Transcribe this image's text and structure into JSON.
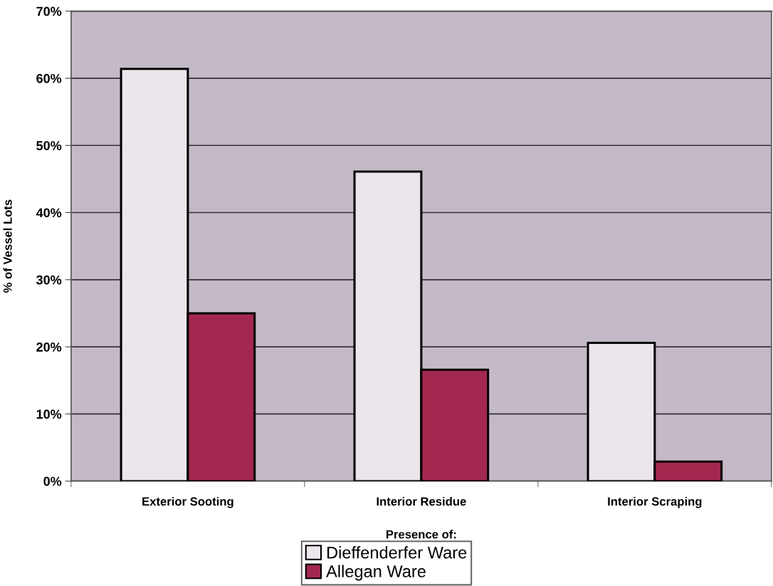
{
  "chart_data": {
    "type": "bar",
    "xlabel": "Presence of:",
    "ylabel": "% of Vessel Lots",
    "categories": [
      "Exterior Sooting",
      "Interior Residue",
      "Interior Scraping"
    ],
    "series": [
      {
        "name": "Dieffenderfer Ware",
        "color": "#ece6ec",
        "values": [
          61.4,
          46.1,
          20.6
        ]
      },
      {
        "name": "Allegan Ware",
        "color": "#a3284f",
        "values": [
          25.0,
          16.6,
          2.9
        ]
      }
    ],
    "ylim": [
      0,
      70
    ],
    "yticks": [
      {
        "value": 0,
        "label": "0%"
      },
      {
        "value": 10,
        "label": "10%"
      },
      {
        "value": 20,
        "label": "20%"
      },
      {
        "value": 30,
        "label": "30%"
      },
      {
        "value": 40,
        "label": "40%"
      },
      {
        "value": 50,
        "label": "50%"
      },
      {
        "value": 60,
        "label": "60%"
      },
      {
        "value": 70,
        "label": "70%"
      }
    ],
    "grid": "y",
    "legend": "bottom"
  }
}
